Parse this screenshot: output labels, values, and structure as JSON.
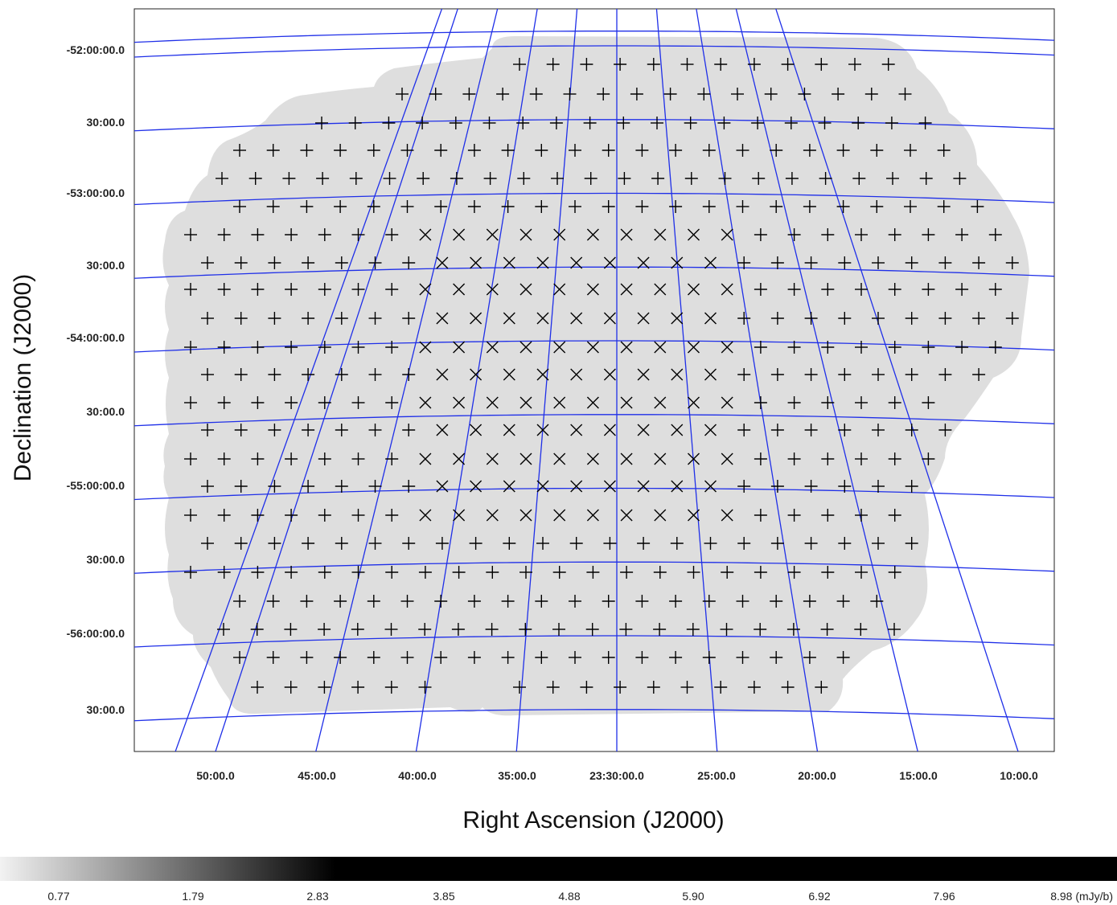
{
  "chart_data": {
    "type": "heatmap",
    "title": "",
    "xlabel": "Right Ascension (J2000)",
    "ylabel": "Declination (J2000)",
    "x_ticks": [
      "50:00.0",
      "45:00.0",
      "40:00.0",
      "35:00.0",
      "23:30:00.0",
      "25:00.0",
      "20:00.0",
      "15:00.0",
      "10:00.0"
    ],
    "y_ticks": [
      "-52:00:00.0",
      "30:00.0",
      "-53:00:00.0",
      "30:00.0",
      "-54:00:00.0",
      "30:00.0",
      "-55:00:00.0",
      "30:00.0",
      "-56:00:00.0",
      "30:00.0"
    ],
    "x_ticks_min": [
      50,
      45,
      40,
      35,
      30,
      25,
      20,
      15,
      10
    ],
    "y_ticks_deg": [
      -52.0,
      -52.5,
      -53.0,
      -53.5,
      -54.0,
      -54.5,
      -55.0,
      -55.5,
      -56.0,
      -56.5
    ],
    "grid": true,
    "grid_color": "#1f2fe8",
    "image_color": "#dedede",
    "marker_color": "#000000",
    "markers": {
      "plus": "+ (outer pointings)",
      "cross": "x (inner pointings)"
    },
    "colorbar": {
      "labels": [
        "0.77",
        "1.79",
        "2.83",
        "3.85",
        "4.88",
        "5.90",
        "6.92",
        "7.96",
        "8.98 (mJy/b)"
      ],
      "values": [
        0.77,
        1.79,
        2.83,
        3.85,
        4.88,
        5.9,
        6.92,
        7.96,
        8.98
      ],
      "unit": "mJy/b",
      "colormap": "grey-to-black",
      "placement": "bottom"
    }
  }
}
